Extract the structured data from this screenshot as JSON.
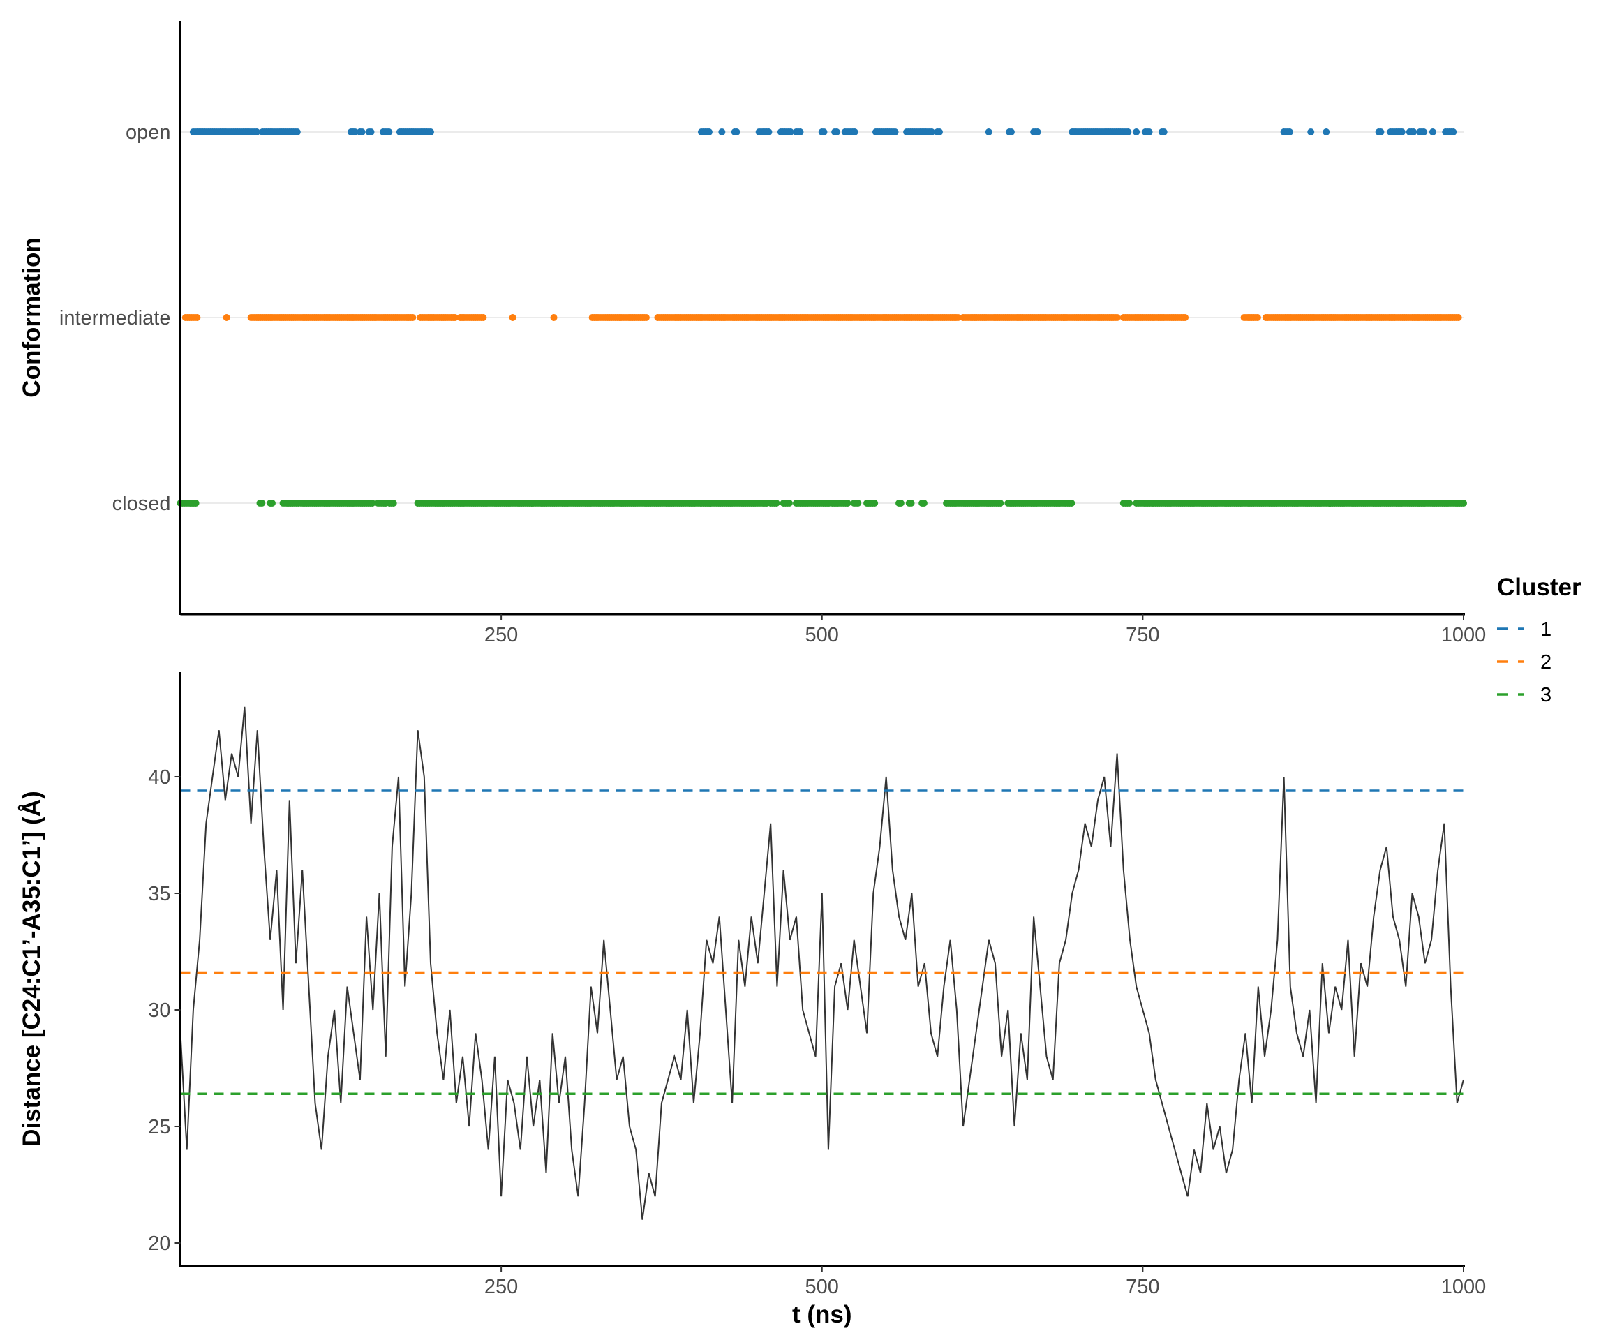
{
  "chart_data": [
    {
      "type": "scatter",
      "ylabel": "Conformation",
      "xlabel": "",
      "xlim": [
        0,
        1000
      ],
      "xticks": [
        250,
        500,
        750,
        1000
      ],
      "categories": [
        "closed",
        "intermediate",
        "open"
      ],
      "grid": "horizontal major lines only",
      "series": [
        {
          "category": "open",
          "color": "#1f77b4",
          "intervals_ns": [
            [
              10,
              60
            ],
            [
              64,
              92
            ],
            [
              133,
              136
            ],
            [
              140,
              142
            ],
            [
              147,
              149
            ],
            [
              158,
              163
            ],
            [
              171,
              195
            ],
            [
              406,
              412
            ],
            [
              422,
              423
            ],
            [
              432,
              434
            ],
            [
              451,
              459
            ],
            [
              468,
              476
            ],
            [
              480,
              484
            ],
            [
              500,
              502
            ],
            [
              510,
              512
            ],
            [
              518,
              526
            ],
            [
              542,
              557
            ],
            [
              566,
              586
            ],
            [
              590,
              592
            ],
            [
              630,
              631
            ],
            [
              646,
              648
            ],
            [
              665,
              669
            ],
            [
              695,
              739
            ],
            [
              745,
              746
            ],
            [
              752,
              756
            ],
            [
              765,
              767
            ],
            [
              860,
              865
            ],
            [
              881,
              882
            ],
            [
              893,
              894
            ],
            [
              934,
              936
            ],
            [
              943,
              952
            ],
            [
              958,
              962
            ],
            [
              966,
              970
            ],
            [
              976,
              977
            ],
            [
              986,
              992
            ]
          ]
        },
        {
          "category": "intermediate",
          "color": "#ff7f0e",
          "intervals_ns": [
            [
              4,
              14
            ],
            [
              36,
              37
            ],
            [
              55,
              181
            ],
            [
              187,
              214
            ],
            [
              218,
              237
            ],
            [
              259,
              260
            ],
            [
              291,
              292
            ],
            [
              321,
              364
            ],
            [
              372,
              606
            ],
            [
              610,
              731
            ],
            [
              735,
              783
            ],
            [
              829,
              840
            ],
            [
              846,
              996
            ]
          ]
        },
        {
          "category": "closed",
          "color": "#2ca02c",
          "intervals_ns": [
            [
              0,
              12
            ],
            [
              62,
              64
            ],
            [
              70,
              72
            ],
            [
              80,
              92
            ],
            [
              94,
              150
            ],
            [
              154,
              160
            ],
            [
              163,
              166
            ],
            [
              185,
              406
            ],
            [
              406,
              458
            ],
            [
              460,
              465
            ],
            [
              470,
              475
            ],
            [
              480,
              506
            ],
            [
              508,
              520
            ],
            [
              525,
              528
            ],
            [
              535,
              542
            ],
            [
              560,
              562
            ],
            [
              568,
              570
            ],
            [
              578,
              580
            ],
            [
              597,
              640
            ],
            [
              645,
              695
            ],
            [
              735,
              740
            ],
            [
              745,
              1000
            ]
          ]
        }
      ]
    },
    {
      "type": "line",
      "xlabel": "t (ns)",
      "ylabel": "Distance [C24:C1’-A35:C1’] (Å)",
      "xlim": [
        0,
        1000
      ],
      "ylim": [
        19,
        44.5
      ],
      "xticks": [
        250,
        500,
        750,
        1000
      ],
      "yticks": [
        20,
        25,
        30,
        35,
        40
      ],
      "grid": "none",
      "line_color": "#333333",
      "x_step_ns": 5,
      "values": [
        29,
        24,
        30,
        33,
        38,
        40,
        42,
        39,
        41,
        40,
        43,
        38,
        42,
        37,
        33,
        36,
        30,
        39,
        32,
        36,
        31,
        26,
        24,
        28,
        30,
        26,
        31,
        29,
        27,
        34,
        30,
        35,
        28,
        37,
        40,
        31,
        35,
        42,
        40,
        32,
        29,
        27,
        30,
        26,
        28,
        25,
        29,
        27,
        24,
        28,
        22,
        27,
        26,
        24,
        28,
        25,
        27,
        23,
        29,
        26,
        28,
        24,
        22,
        26,
        31,
        29,
        33,
        30,
        27,
        28,
        25,
        24,
        21,
        23,
        22,
        26,
        27,
        28,
        27,
        30,
        26,
        29,
        33,
        32,
        34,
        30,
        26,
        33,
        31,
        34,
        32,
        35,
        38,
        31,
        36,
        33,
        34,
        30,
        29,
        28,
        35,
        24,
        31,
        32,
        30,
        33,
        31,
        29,
        35,
        37,
        40,
        36,
        34,
        33,
        35,
        31,
        32,
        29,
        28,
        31,
        33,
        30,
        25,
        27,
        29,
        31,
        33,
        32,
        28,
        30,
        25,
        29,
        27,
        34,
        31,
        28,
        27,
        32,
        33,
        35,
        36,
        38,
        37,
        39,
        40,
        37,
        41,
        36,
        33,
        31,
        30,
        29,
        27,
        26,
        25,
        24,
        23,
        22,
        24,
        23,
        26,
        24,
        25,
        23,
        24,
        27,
        29,
        26,
        31,
        28,
        30,
        33,
        40,
        31,
        29,
        28,
        30,
        26,
        32,
        29,
        31,
        30,
        33,
        28,
        32,
        31,
        34,
        36,
        37,
        34,
        33,
        31,
        35,
        34,
        32,
        33,
        36,
        38,
        31,
        26,
        27
      ],
      "hlines": [
        {
          "cluster": "1",
          "y": 39.4,
          "color": "#1f77b4",
          "style": "dashed"
        },
        {
          "cluster": "2",
          "y": 31.6,
          "color": "#ff7f0e",
          "style": "dashed"
        },
        {
          "cluster": "3",
          "y": 26.4,
          "color": "#2ca02c",
          "style": "dashed"
        }
      ]
    }
  ],
  "legend": {
    "title": "Cluster",
    "placement": "right",
    "items": [
      {
        "label": "1",
        "color": "#1f77b4"
      },
      {
        "label": "2",
        "color": "#ff7f0e"
      },
      {
        "label": "3",
        "color": "#2ca02c"
      }
    ]
  }
}
